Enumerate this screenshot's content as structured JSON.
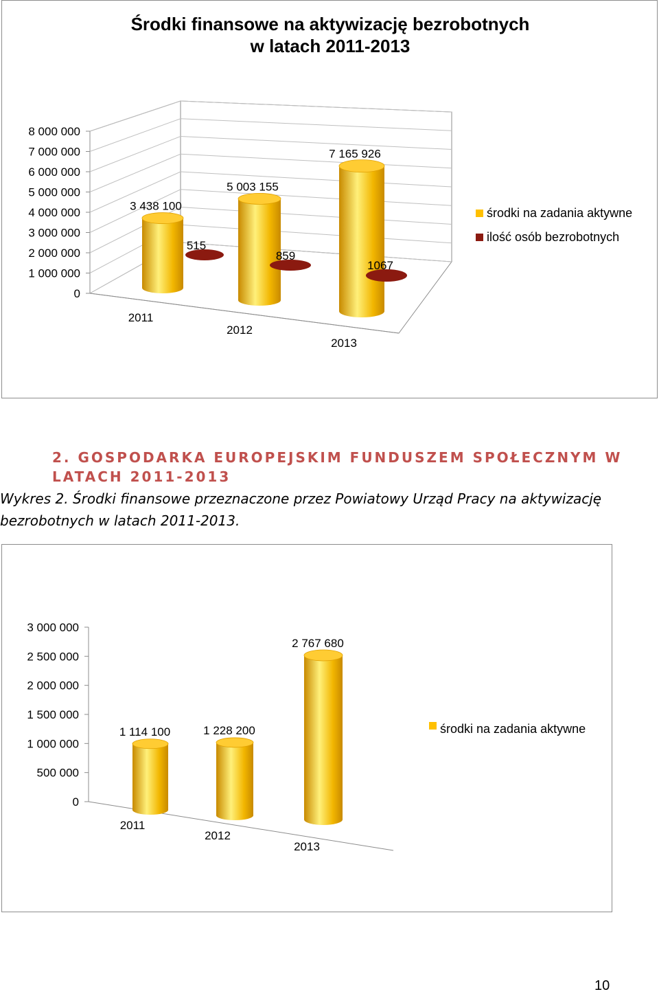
{
  "chart_data": [
    {
      "type": "bar",
      "title_line1": "Środki finansowe na aktywizację bezrobotnych",
      "title_line2": "w latach 2011-2013",
      "categories": [
        "2011",
        "2012",
        "2013"
      ],
      "series": [
        {
          "name": "środki na zadania aktywne",
          "values": [
            3438100,
            5003155,
            7165926
          ],
          "labels": [
            "3 438 100",
            "5 003 155",
            "7 165 926"
          ],
          "color": "#ffc000"
        },
        {
          "name": "ilość osób bezrobotnych",
          "values": [
            515,
            859,
            1067
          ],
          "labels": [
            "515",
            "859",
            "1067"
          ],
          "color": "#8b1a10"
        }
      ],
      "yticks": [
        "0",
        "1 000 000",
        "2 000 000",
        "3 000 000",
        "4 000 000",
        "5 000 000",
        "6 000 000",
        "7 000 000",
        "8 000 000"
      ],
      "ylim": [
        0,
        8000000
      ],
      "legend_position": "right",
      "style": "3d-cylinder"
    },
    {
      "type": "bar",
      "categories": [
        "2011",
        "2012",
        "2013"
      ],
      "series": [
        {
          "name": "środki na zadania aktywne",
          "values": [
            1114100,
            1228200,
            2767680
          ],
          "labels": [
            "1 114 100",
            "1 228 200",
            "2 767 680"
          ],
          "color": "#ffc000"
        }
      ],
      "yticks": [
        "0",
        "500 000",
        "1 000 000",
        "1 500 000",
        "2 000 000",
        "2 500 000",
        "3 000 000"
      ],
      "ylim": [
        0,
        3000000
      ],
      "legend_position": "right",
      "style": "3d-cylinder"
    }
  ],
  "section": {
    "heading_line1": "2. GOSPODARKA EUROPEJSKIM FUNDUSZEM SPOŁECZNYM W",
    "heading_line2": "LATACH 2011-2013",
    "caption_line1": "Wykres 2. Środki finansowe przeznaczone przez Powiatowy Urząd Pracy na aktywizację",
    "caption_line2": "bezrobotnych w latach 2011-2013."
  },
  "page_number": "10"
}
